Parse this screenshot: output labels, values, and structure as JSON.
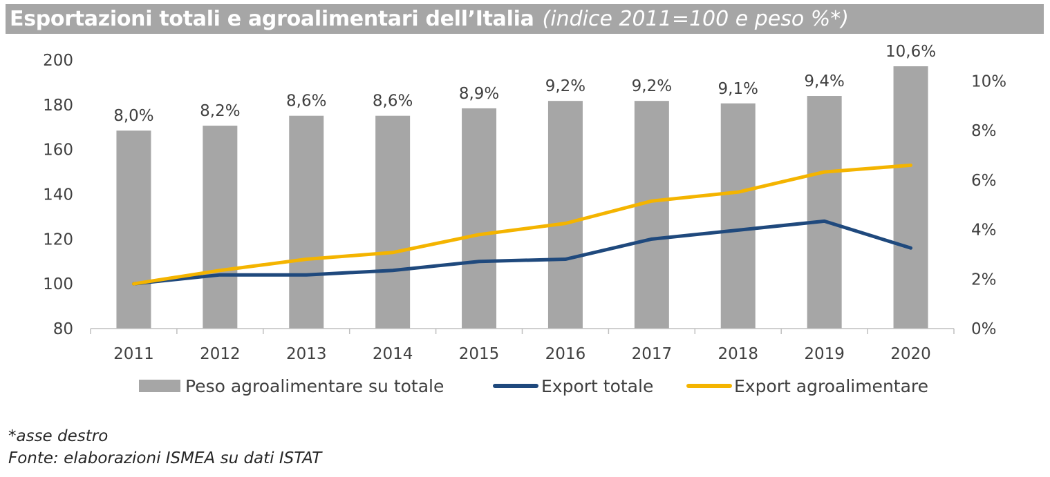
{
  "title": {
    "main": "Esportazioni totali e agroalimentari dell’Italia",
    "sub": "(indice 2011=100 e peso %*)"
  },
  "colors": {
    "bars": "#a6a6a6",
    "export_totale": "#1f497d",
    "export_agroalimentare": "#f4b400",
    "axis": "#bfbfbf",
    "title_bg": "#a6a6a6"
  },
  "chart_data": {
    "type": "bar+line",
    "categories": [
      "2011",
      "2012",
      "2013",
      "2014",
      "2015",
      "2016",
      "2017",
      "2018",
      "2019",
      "2020"
    ],
    "y_left": {
      "ylim": [
        80,
        200
      ],
      "ticks": [
        "80",
        "100",
        "120",
        "140",
        "160",
        "180",
        "200"
      ]
    },
    "y_right": {
      "ylim": [
        0,
        10.6
      ],
      "ticks": [
        "0%",
        "2%",
        "4%",
        "6%",
        "8%",
        "10%"
      ]
    },
    "series": [
      {
        "name": "Peso agroalimentare su totale",
        "type": "bar",
        "axis": "right",
        "values": [
          8.0,
          8.2,
          8.6,
          8.6,
          8.9,
          9.2,
          9.2,
          9.1,
          9.4,
          10.6
        ],
        "labels": [
          "8,0%",
          "8,2%",
          "8,6%",
          "8,6%",
          "8,9%",
          "9,2%",
          "9,2%",
          "9,1%",
          "9,4%",
          "10,6%"
        ]
      },
      {
        "name": "Export totale",
        "type": "line",
        "axis": "left",
        "values": [
          100,
          104,
          104,
          106,
          110,
          111,
          120,
          124,
          128,
          116
        ]
      },
      {
        "name": "Export agroalimentare",
        "type": "line",
        "axis": "left",
        "values": [
          100,
          106,
          111,
          114,
          122,
          127,
          137,
          141,
          150,
          153
        ]
      }
    ],
    "grid": false,
    "legend_position": "bottom"
  },
  "notes": {
    "asse": "*asse destro",
    "fonte": "Fonte: elaborazioni ISMEA su dati ISTAT"
  }
}
